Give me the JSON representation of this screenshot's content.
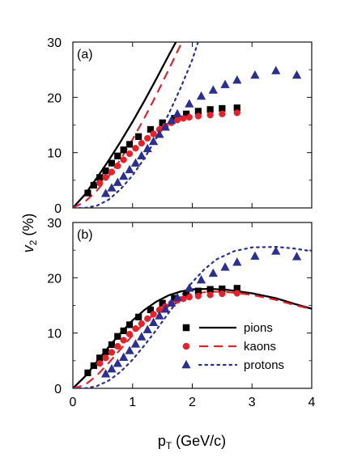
{
  "chart_data": [
    {
      "type": "scatter",
      "panel_label": "(a)",
      "xlim": [
        0,
        4
      ],
      "ylim": [
        0,
        30
      ],
      "x_ticks": [
        0,
        1,
        2,
        3,
        4
      ],
      "y_ticks": [
        0,
        10,
        20,
        30
      ],
      "series": [
        {
          "name": "pions",
          "marker": "square",
          "color": "#000000",
          "points": [
            {
              "x": 0.25,
              "y": 2.7
            },
            {
              "x": 0.35,
              "y": 4.1
            },
            {
              "x": 0.45,
              "y": 5.5
            },
            {
              "x": 0.55,
              "y": 6.7
            },
            {
              "x": 0.65,
              "y": 8.1
            },
            {
              "x": 0.75,
              "y": 9.4
            },
            {
              "x": 0.85,
              "y": 10.5
            },
            {
              "x": 0.95,
              "y": 11.5
            },
            {
              "x": 1.1,
              "y": 12.9
            },
            {
              "x": 1.3,
              "y": 14.2
            },
            {
              "x": 1.5,
              "y": 15.4
            },
            {
              "x": 1.7,
              "y": 16.2
            },
            {
              "x": 1.9,
              "y": 17.0
            },
            {
              "x": 2.1,
              "y": 17.5
            },
            {
              "x": 2.3,
              "y": 17.8
            },
            {
              "x": 2.5,
              "y": 18.0
            },
            {
              "x": 2.75,
              "y": 18.1
            }
          ]
        },
        {
          "name": "kaons",
          "marker": "circle",
          "color": "#e8202a",
          "points": [
            {
              "x": 0.45,
              "y": 4.5
            },
            {
              "x": 0.55,
              "y": 5.5
            },
            {
              "x": 0.65,
              "y": 6.5
            },
            {
              "x": 0.75,
              "y": 7.6
            },
            {
              "x": 0.85,
              "y": 8.7
            },
            {
              "x": 0.95,
              "y": 9.8
            },
            {
              "x": 1.05,
              "y": 10.8
            },
            {
              "x": 1.15,
              "y": 11.7
            },
            {
              "x": 1.25,
              "y": 12.6
            },
            {
              "x": 1.35,
              "y": 13.4
            },
            {
              "x": 1.45,
              "y": 14.2
            },
            {
              "x": 1.55,
              "y": 14.8
            },
            {
              "x": 1.65,
              "y": 15.4
            },
            {
              "x": 1.75,
              "y": 15.9
            },
            {
              "x": 1.85,
              "y": 16.2
            },
            {
              "x": 1.95,
              "y": 16.4
            },
            {
              "x": 2.1,
              "y": 16.6
            },
            {
              "x": 2.3,
              "y": 16.8
            },
            {
              "x": 2.5,
              "y": 17.0
            },
            {
              "x": 2.75,
              "y": 17.2
            }
          ]
        },
        {
          "name": "protons",
          "marker": "triangle",
          "color": "#2b2f8f",
          "points": [
            {
              "x": 0.55,
              "y": 2.6
            },
            {
              "x": 0.65,
              "y": 3.6
            },
            {
              "x": 0.75,
              "y": 4.6
            },
            {
              "x": 0.85,
              "y": 5.7
            },
            {
              "x": 0.95,
              "y": 6.9
            },
            {
              "x": 1.05,
              "y": 8.1
            },
            {
              "x": 1.15,
              "y": 9.4
            },
            {
              "x": 1.25,
              "y": 10.7
            },
            {
              "x": 1.35,
              "y": 12.0
            },
            {
              "x": 1.45,
              "y": 13.3
            },
            {
              "x": 1.55,
              "y": 14.6
            },
            {
              "x": 1.65,
              "y": 15.8
            },
            {
              "x": 1.75,
              "y": 17.0
            },
            {
              "x": 1.95,
              "y": 18.8
            },
            {
              "x": 2.15,
              "y": 20.2
            },
            {
              "x": 2.35,
              "y": 21.3
            },
            {
              "x": 2.55,
              "y": 22.3
            },
            {
              "x": 2.75,
              "y": 23.1
            },
            {
              "x": 3.05,
              "y": 24.0
            },
            {
              "x": 3.4,
              "y": 24.8
            },
            {
              "x": 3.75,
              "y": 24.0
            }
          ]
        }
      ],
      "curves": [
        {
          "name": "pions",
          "style": "solid",
          "color": "#000000",
          "points": [
            {
              "x": 0.0,
              "y": 0.0
            },
            {
              "x": 0.2,
              "y": 2.4
            },
            {
              "x": 0.4,
              "y": 5.4
            },
            {
              "x": 0.6,
              "y": 8.6
            },
            {
              "x": 0.8,
              "y": 12.0
            },
            {
              "x": 1.0,
              "y": 15.6
            },
            {
              "x": 1.2,
              "y": 19.4
            },
            {
              "x": 1.4,
              "y": 23.4
            },
            {
              "x": 1.6,
              "y": 27.5
            },
            {
              "x": 1.75,
              "y": 30.5
            },
            {
              "x": 1.82,
              "y": 32.2
            }
          ]
        },
        {
          "name": "kaons",
          "style": "dashed",
          "color": "#e8202a",
          "points": [
            {
              "x": 0.0,
              "y": 0.0
            },
            {
              "x": 0.2,
              "y": 1.1
            },
            {
              "x": 0.4,
              "y": 3.1
            },
            {
              "x": 0.6,
              "y": 5.7
            },
            {
              "x": 0.8,
              "y": 8.8
            },
            {
              "x": 1.0,
              "y": 12.4
            },
            {
              "x": 1.2,
              "y": 16.3
            },
            {
              "x": 1.4,
              "y": 20.5
            },
            {
              "x": 1.6,
              "y": 24.9
            },
            {
              "x": 1.8,
              "y": 29.4
            },
            {
              "x": 1.92,
              "y": 31.8
            }
          ]
        },
        {
          "name": "protons",
          "style": "dotted",
          "color": "#2b2f8f",
          "points": [
            {
              "x": 0.0,
              "y": 0.0
            },
            {
              "x": 0.2,
              "y": 0.0
            },
            {
              "x": 0.4,
              "y": 0.4
            },
            {
              "x": 0.6,
              "y": 1.5
            },
            {
              "x": 0.8,
              "y": 3.4
            },
            {
              "x": 1.0,
              "y": 5.9
            },
            {
              "x": 1.2,
              "y": 9.0
            },
            {
              "x": 1.4,
              "y": 12.7
            },
            {
              "x": 1.6,
              "y": 16.9
            },
            {
              "x": 1.8,
              "y": 21.6
            },
            {
              "x": 2.0,
              "y": 26.8
            },
            {
              "x": 2.15,
              "y": 31.8
            }
          ]
        }
      ]
    },
    {
      "type": "scatter",
      "panel_label": "(b)",
      "xlim": [
        0,
        4
      ],
      "ylim": [
        0,
        30
      ],
      "x_ticks": [
        0,
        1,
        2,
        3,
        4
      ],
      "y_ticks": [
        0,
        10,
        20,
        30
      ],
      "series": [
        {
          "name": "pions",
          "marker": "square",
          "color": "#000000",
          "points": [
            {
              "x": 0.25,
              "y": 2.8
            },
            {
              "x": 0.35,
              "y": 4.1
            },
            {
              "x": 0.45,
              "y": 5.5
            },
            {
              "x": 0.55,
              "y": 6.6
            },
            {
              "x": 0.65,
              "y": 7.9
            },
            {
              "x": 0.75,
              "y": 9.4
            },
            {
              "x": 0.85,
              "y": 10.4
            },
            {
              "x": 0.95,
              "y": 11.5
            },
            {
              "x": 1.1,
              "y": 12.9
            },
            {
              "x": 1.3,
              "y": 14.2
            },
            {
              "x": 1.5,
              "y": 15.4
            },
            {
              "x": 1.7,
              "y": 16.3
            },
            {
              "x": 1.9,
              "y": 17.1
            },
            {
              "x": 2.1,
              "y": 17.6
            },
            {
              "x": 2.3,
              "y": 17.9
            },
            {
              "x": 2.5,
              "y": 18.0
            },
            {
              "x": 2.75,
              "y": 18.1
            }
          ]
        },
        {
          "name": "kaons",
          "marker": "circle",
          "color": "#e8202a",
          "points": [
            {
              "x": 0.45,
              "y": 4.5
            },
            {
              "x": 0.55,
              "y": 5.5
            },
            {
              "x": 0.65,
              "y": 6.5
            },
            {
              "x": 0.75,
              "y": 7.6
            },
            {
              "x": 0.85,
              "y": 8.7
            },
            {
              "x": 0.95,
              "y": 9.8
            },
            {
              "x": 1.05,
              "y": 10.8
            },
            {
              "x": 1.15,
              "y": 11.7
            },
            {
              "x": 1.25,
              "y": 12.6
            },
            {
              "x": 1.35,
              "y": 13.4
            },
            {
              "x": 1.45,
              "y": 14.2
            },
            {
              "x": 1.55,
              "y": 14.8
            },
            {
              "x": 1.65,
              "y": 15.4
            },
            {
              "x": 1.75,
              "y": 15.9
            },
            {
              "x": 1.85,
              "y": 16.2
            },
            {
              "x": 1.95,
              "y": 16.5
            },
            {
              "x": 2.1,
              "y": 16.7
            },
            {
              "x": 2.3,
              "y": 16.9
            },
            {
              "x": 2.5,
              "y": 17.1
            },
            {
              "x": 2.75,
              "y": 17.2
            }
          ]
        },
        {
          "name": "protons",
          "marker": "triangle",
          "color": "#2b2f8f",
          "points": [
            {
              "x": 0.55,
              "y": 2.6
            },
            {
              "x": 0.65,
              "y": 3.5
            },
            {
              "x": 0.75,
              "y": 4.5
            },
            {
              "x": 0.85,
              "y": 5.6
            },
            {
              "x": 0.95,
              "y": 6.8
            },
            {
              "x": 1.05,
              "y": 8.0
            },
            {
              "x": 1.15,
              "y": 9.3
            },
            {
              "x": 1.25,
              "y": 10.6
            },
            {
              "x": 1.35,
              "y": 11.9
            },
            {
              "x": 1.45,
              "y": 13.1
            },
            {
              "x": 1.55,
              "y": 14.3
            },
            {
              "x": 1.65,
              "y": 15.4
            },
            {
              "x": 1.75,
              "y": 16.4
            },
            {
              "x": 1.95,
              "y": 18.1
            },
            {
              "x": 2.15,
              "y": 19.6
            },
            {
              "x": 2.35,
              "y": 20.8
            },
            {
              "x": 2.55,
              "y": 21.9
            },
            {
              "x": 2.75,
              "y": 22.8
            },
            {
              "x": 3.05,
              "y": 23.9
            },
            {
              "x": 3.4,
              "y": 24.8
            },
            {
              "x": 3.75,
              "y": 23.8
            }
          ]
        }
      ],
      "curves": [
        {
          "name": "pions",
          "style": "solid",
          "color": "#000000",
          "points": [
            {
              "x": 0.0,
              "y": 0.0
            },
            {
              "x": 0.2,
              "y": 2.1
            },
            {
              "x": 0.4,
              "y": 4.8
            },
            {
              "x": 0.6,
              "y": 7.5
            },
            {
              "x": 0.8,
              "y": 10.0
            },
            {
              "x": 1.0,
              "y": 12.3
            },
            {
              "x": 1.2,
              "y": 14.2
            },
            {
              "x": 1.4,
              "y": 15.7
            },
            {
              "x": 1.6,
              "y": 16.8
            },
            {
              "x": 1.8,
              "y": 17.5
            },
            {
              "x": 2.0,
              "y": 17.9
            },
            {
              "x": 2.3,
              "y": 18.0
            },
            {
              "x": 2.6,
              "y": 17.8
            },
            {
              "x": 3.0,
              "y": 17.2
            },
            {
              "x": 3.4,
              "y": 16.3
            },
            {
              "x": 3.7,
              "y": 15.3
            },
            {
              "x": 4.0,
              "y": 14.4
            }
          ]
        },
        {
          "name": "kaons",
          "style": "dashed",
          "color": "#e8202a",
          "points": [
            {
              "x": 0.0,
              "y": 0.0
            },
            {
              "x": 0.2,
              "y": 0.6
            },
            {
              "x": 0.4,
              "y": 2.3
            },
            {
              "x": 0.6,
              "y": 4.6
            },
            {
              "x": 0.8,
              "y": 7.1
            },
            {
              "x": 1.0,
              "y": 9.6
            },
            {
              "x": 1.2,
              "y": 11.9
            },
            {
              "x": 1.4,
              "y": 13.8
            },
            {
              "x": 1.6,
              "y": 15.3
            },
            {
              "x": 1.8,
              "y": 16.4
            },
            {
              "x": 2.0,
              "y": 17.1
            },
            {
              "x": 2.3,
              "y": 17.5
            },
            {
              "x": 2.6,
              "y": 17.4
            },
            {
              "x": 3.0,
              "y": 16.9
            },
            {
              "x": 3.4,
              "y": 16.0
            },
            {
              "x": 3.7,
              "y": 15.1
            },
            {
              "x": 4.0,
              "y": 14.3
            }
          ]
        },
        {
          "name": "protons",
          "style": "dotted",
          "color": "#2b2f8f",
          "points": [
            {
              "x": 0.0,
              "y": 0.0
            },
            {
              "x": 0.2,
              "y": 0.0
            },
            {
              "x": 0.4,
              "y": 0.4
            },
            {
              "x": 0.6,
              "y": 1.4
            },
            {
              "x": 0.8,
              "y": 3.0
            },
            {
              "x": 1.0,
              "y": 5.2
            },
            {
              "x": 1.2,
              "y": 7.8
            },
            {
              "x": 1.4,
              "y": 10.6
            },
            {
              "x": 1.6,
              "y": 13.6
            },
            {
              "x": 1.8,
              "y": 16.5
            },
            {
              "x": 2.0,
              "y": 19.2
            },
            {
              "x": 2.2,
              "y": 21.5
            },
            {
              "x": 2.4,
              "y": 23.3
            },
            {
              "x": 2.7,
              "y": 24.8
            },
            {
              "x": 3.0,
              "y": 25.5
            },
            {
              "x": 3.4,
              "y": 25.6
            },
            {
              "x": 3.7,
              "y": 25.3
            },
            {
              "x": 4.0,
              "y": 24.8
            }
          ]
        }
      ]
    }
  ],
  "labels": {
    "y_axis_main": "v",
    "y_axis_sub": "2",
    "y_axis_rest": " (%)",
    "x_axis_main": "p",
    "x_axis_sub": "T",
    "x_axis_rest": " (GeV/c)"
  },
  "legend": [
    {
      "name": "pions",
      "marker": "square",
      "color": "#000000",
      "line_style": "solid"
    },
    {
      "name": "kaons",
      "marker": "circle",
      "color": "#e8202a",
      "line_style": "dashed"
    },
    {
      "name": "protons",
      "marker": "triangle",
      "color": "#2b2f8f",
      "line_style": "dotted"
    }
  ]
}
